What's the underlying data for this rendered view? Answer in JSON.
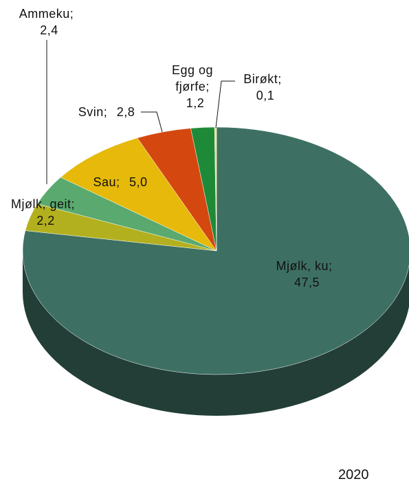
{
  "chart_data": {
    "type": "pie3d",
    "categories": [
      "Mjølk, ku",
      "Mjølk, geit",
      "Ammeku",
      "Sau",
      "Svin",
      "Egg og fjørfe",
      "Birøkt"
    ],
    "values": [
      47.5,
      2.2,
      2.4,
      5.0,
      2.8,
      1.2,
      0.1
    ],
    "value_labels": [
      "47,5",
      "2,2",
      "2,4",
      "5,0",
      "2,8",
      "1,2",
      "0,1"
    ],
    "label_separator": ";",
    "colors": [
      "#3d7063",
      "#b3b01f",
      "#5aa96e",
      "#e6b90a",
      "#d4470f",
      "#1e8a38",
      "#e9e27c"
    ],
    "caption": "2020"
  }
}
